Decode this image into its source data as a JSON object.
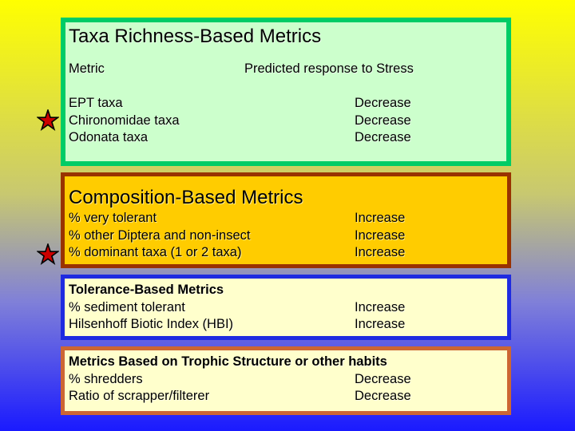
{
  "section_taxa": {
    "title": "Taxa Richness-Based Metrics",
    "col_metric": "Metric",
    "col_response": "Predicted response to Stress",
    "rows": [
      {
        "metric": "EPT taxa",
        "response": "Decrease"
      },
      {
        "metric": "Chironomidae taxa",
        "response": "Decrease"
      },
      {
        "metric": "Odonata taxa",
        "response": "Decrease"
      }
    ]
  },
  "section_composition": {
    "title": "Composition-Based Metrics",
    "rows": [
      {
        "metric": "% very tolerant",
        "response": "Increase"
      },
      {
        "metric": "% other Diptera and non-insect",
        "response": "Increase"
      },
      {
        "metric": "% dominant taxa (1 or 2 taxa)",
        "response": "Increase"
      }
    ]
  },
  "section_tolerance": {
    "title": "Tolerance-Based Metrics",
    "rows": [
      {
        "metric": "% sediment tolerant",
        "response": "Increase"
      },
      {
        "metric": "Hilsenhoff Biotic Index (HBI)",
        "response": "Increase"
      }
    ]
  },
  "section_trophic": {
    "title": "Metrics Based on Trophic Structure or other habits",
    "rows": [
      {
        "metric": "% shredders",
        "response": "Decrease"
      },
      {
        "metric": "Ratio of scrapper/filterer",
        "response": "Decrease"
      }
    ]
  },
  "colors": {
    "taxa_fill": "#ccffcc",
    "taxa_border": "#00cc66",
    "composition_fill": "#ffcc00",
    "composition_border": "#993300",
    "tolerance_fill": "#ffffcc",
    "tolerance_border": "#1f2be0",
    "trophic_fill": "#ffffcc",
    "trophic_border": "#cc6633",
    "star_fill": "#cc0000"
  },
  "icons": [
    "star-icon",
    "star-icon"
  ]
}
